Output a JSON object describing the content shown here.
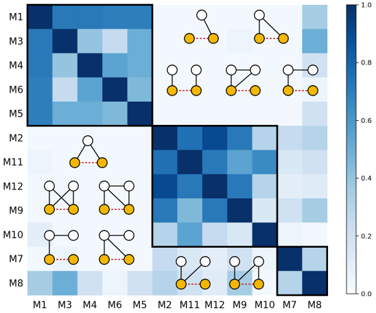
{
  "chart_data": {
    "type": "heatmap",
    "title": "",
    "xlabel": "",
    "ylabel": "",
    "x_categories": [
      "M1",
      "M3",
      "M4",
      "M6",
      "M5",
      "M2",
      "M11",
      "M12",
      "M9",
      "M10",
      "M7",
      "M8"
    ],
    "y_categories": [
      "M1",
      "M3",
      "M4",
      "M6",
      "M5",
      "M2",
      "M11",
      "M12",
      "M9",
      "M10",
      "M7",
      "M8"
    ],
    "values": [
      [
        1.0,
        0.72,
        0.72,
        0.7,
        0.7,
        0.02,
        0.02,
        0.02,
        0.02,
        0.02,
        0.02,
        0.35
      ],
      [
        0.72,
        1.0,
        0.4,
        0.25,
        0.5,
        0.02,
        0.02,
        0.02,
        0.05,
        0.02,
        0.02,
        0.5
      ],
      [
        0.72,
        0.4,
        1.0,
        0.55,
        0.5,
        0.02,
        0.02,
        0.02,
        0.02,
        0.02,
        0.02,
        0.2
      ],
      [
        0.7,
        0.25,
        0.55,
        1.0,
        0.45,
        0.02,
        0.02,
        0.02,
        0.02,
        0.02,
        0.02,
        0.05
      ],
      [
        0.7,
        0.5,
        0.5,
        0.45,
        1.0,
        0.02,
        0.02,
        0.02,
        0.02,
        0.02,
        0.02,
        0.2
      ],
      [
        0.02,
        0.02,
        0.02,
        0.02,
        0.02,
        1.0,
        0.75,
        0.9,
        0.72,
        0.3,
        0.25,
        0.3
      ],
      [
        0.05,
        0.02,
        0.02,
        0.02,
        0.02,
        0.75,
        1.0,
        0.72,
        0.55,
        0.65,
        0.15,
        0.2
      ],
      [
        0.02,
        0.02,
        0.02,
        0.02,
        0.02,
        0.9,
        0.72,
        1.0,
        0.72,
        0.3,
        0.1,
        0.12
      ],
      [
        0.02,
        0.02,
        0.02,
        0.02,
        0.02,
        0.72,
        0.45,
        0.72,
        1.0,
        0.15,
        0.2,
        0.35
      ],
      [
        0.1,
        0.02,
        0.02,
        0.02,
        0.02,
        0.3,
        0.55,
        0.25,
        0.15,
        1.0,
        0.05,
        0.02
      ],
      [
        0.02,
        0.05,
        0.02,
        0.02,
        0.02,
        0.25,
        0.15,
        0.1,
        0.2,
        0.05,
        1.0,
        0.3
      ],
      [
        0.35,
        0.5,
        0.2,
        0.05,
        0.2,
        0.3,
        0.2,
        0.12,
        0.35,
        0.02,
        0.3,
        1.0
      ]
    ],
    "colormap": "Blues",
    "vmin": 0.0,
    "vmax": 1.0,
    "colorbar_ticks": [
      "0.0",
      "0.2",
      "0.4",
      "0.6",
      "0.8",
      "1.0"
    ],
    "blocks": [
      [
        0,
        4
      ],
      [
        5,
        9
      ],
      [
        10,
        11
      ]
    ],
    "node_fill_color": "#F5B800",
    "dashed_edge_color": "#CC2222"
  }
}
